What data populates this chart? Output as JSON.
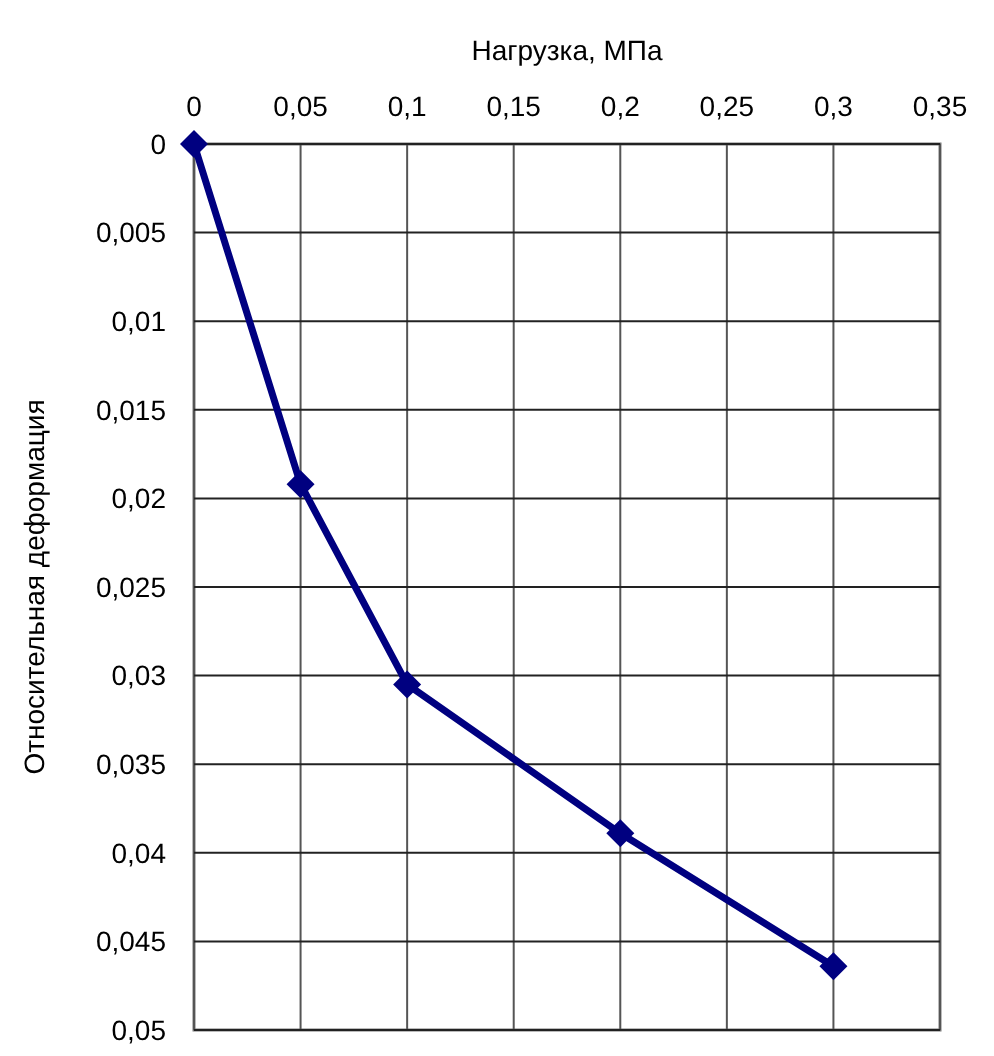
{
  "chart_data": {
    "type": "line",
    "xlabel": "Нагрузка, МПа",
    "ylabel": "Относительная деформация",
    "x": [
      0,
      0.05,
      0.1,
      0.2,
      0.3
    ],
    "series": [
      {
        "color": "#000080",
        "values": [
          0,
          0.0192,
          0.0305,
          0.0389,
          0.0464
        ]
      }
    ],
    "xlim": [
      0,
      0.35
    ],
    "xticks": [
      0,
      {
        "value": 0.05,
        "label": "0,05"
      },
      {
        "value": 0.1,
        "label": "0,1"
      },
      {
        "value": 0.15,
        "label": "0,15"
      },
      {
        "value": 0.2,
        "label": "0,2"
      },
      {
        "value": 0.25,
        "label": "0,25"
      },
      {
        "value": 0.3,
        "label": "0,3"
      },
      {
        "value": 0.35,
        "label": "0,35"
      }
    ],
    "ylim": [
      0.05,
      0
    ],
    "yticks": [
      0,
      {
        "value": 0.005,
        "label": "0,005"
      },
      {
        "value": 0.01,
        "label": "0,01"
      },
      {
        "value": 0.015,
        "label": "0,015"
      },
      {
        "value": 0.02,
        "label": "0,02"
      },
      {
        "value": 0.025,
        "label": "0,025"
      },
      {
        "value": 0.03,
        "label": "0,03"
      },
      {
        "value": 0.035,
        "label": "0,035"
      },
      {
        "value": 0.04,
        "label": "0,04"
      },
      {
        "value": 0.045,
        "label": "0,045"
      },
      {
        "value": 0.05,
        "label": "0,05"
      }
    ],
    "grid": true,
    "marker": "diamond",
    "line_style": "solid"
  }
}
